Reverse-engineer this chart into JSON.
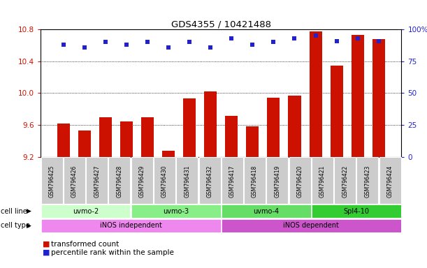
{
  "title": "GDS4355 / 10421488",
  "samples": [
    "GSM796425",
    "GSM796426",
    "GSM796427",
    "GSM796428",
    "GSM796429",
    "GSM796430",
    "GSM796431",
    "GSM796432",
    "GSM796417",
    "GSM796418",
    "GSM796419",
    "GSM796420",
    "GSM796421",
    "GSM796422",
    "GSM796423",
    "GSM796424"
  ],
  "bar_values": [
    9.62,
    9.53,
    9.7,
    9.64,
    9.7,
    9.28,
    9.93,
    10.02,
    9.71,
    9.58,
    9.94,
    9.97,
    10.78,
    10.35,
    10.73,
    10.68
  ],
  "percentile_values": [
    88,
    86,
    90,
    88,
    90,
    86,
    90,
    86,
    93,
    88,
    90,
    93,
    95,
    91,
    93,
    91
  ],
  "bar_color": "#cc1100",
  "dot_color": "#2222cc",
  "ylim_left": [
    9.2,
    10.8
  ],
  "ylim_right": [
    0,
    100
  ],
  "yticks_left": [
    9.2,
    9.6,
    10.0,
    10.4,
    10.8
  ],
  "yticks_right": [
    0,
    25,
    50,
    75,
    100
  ],
  "grid_values": [
    9.6,
    10.0,
    10.4
  ],
  "cell_line_groups": [
    {
      "label": "uvmo-2",
      "start": 0,
      "end": 4,
      "color": "#ccffcc"
    },
    {
      "label": "uvmo-3",
      "start": 4,
      "end": 8,
      "color": "#88ee88"
    },
    {
      "label": "uvmo-4",
      "start": 8,
      "end": 12,
      "color": "#66dd66"
    },
    {
      "label": "Spl4-10",
      "start": 12,
      "end": 16,
      "color": "#33cc33"
    }
  ],
  "cell_type_groups": [
    {
      "label": "iNOS independent",
      "start": 0,
      "end": 8,
      "color": "#ee88ee"
    },
    {
      "label": "iNOS dependent",
      "start": 8,
      "end": 16,
      "color": "#cc55cc"
    }
  ],
  "cell_line_label": "cell line",
  "cell_type_label": "cell type",
  "legend_bar_label": "transformed count",
  "legend_dot_label": "percentile rank within the sample",
  "background_color": "#ffffff",
  "sample_box_color": "#cccccc",
  "bar_bottom": 9.2
}
